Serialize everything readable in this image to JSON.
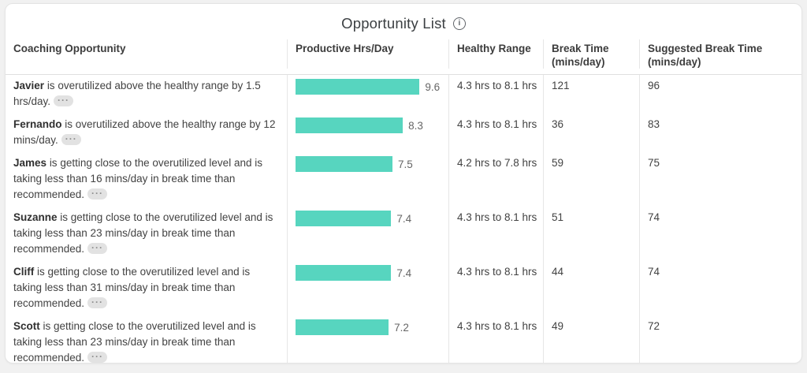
{
  "window": {
    "title": "Opportunity List"
  },
  "icons": {
    "info": "i",
    "more": "···"
  },
  "colors": {
    "bar": "#57d5bf",
    "grid_border": "#e0e0e0"
  },
  "table": {
    "columns": [
      {
        "label": "Coaching Opportunity",
        "sub": ""
      },
      {
        "label": "Productive Hrs/Day",
        "sub": ""
      },
      {
        "label": "Healthy Range",
        "sub": ""
      },
      {
        "label": "Break Time",
        "sub": "(mins/day)"
      },
      {
        "label": "Suggested Break Time",
        "sub": "(mins/day)"
      }
    ],
    "rows": [
      {
        "name": "Javier",
        "description": "is overutilized above the healthy range by 1.5 hrs/day.",
        "productive_hrs_per_day": 9.6,
        "healthy_range": "4.3 hrs to 8.1 hrs",
        "break_time_mins_per_day": "121",
        "suggested_break_time_mins_per_day": "96"
      },
      {
        "name": "Fernando",
        "description": "is overutilized above the healthy range by 12 mins/day.",
        "productive_hrs_per_day": 8.3,
        "healthy_range": "4.3 hrs to 8.1 hrs",
        "break_time_mins_per_day": "36",
        "suggested_break_time_mins_per_day": "83"
      },
      {
        "name": "James",
        "description": "is getting close to the overutilized level and is taking less than 16 mins/day in break time than recommended.",
        "productive_hrs_per_day": 7.5,
        "healthy_range": "4.2 hrs to 7.8 hrs",
        "break_time_mins_per_day": "59",
        "suggested_break_time_mins_per_day": "75"
      },
      {
        "name": "Suzanne",
        "description": "is getting close to the overutilized level and is taking less than 23 mins/day in break time than recommended.",
        "productive_hrs_per_day": 7.4,
        "healthy_range": "4.3 hrs to 8.1 hrs",
        "break_time_mins_per_day": "51",
        "suggested_break_time_mins_per_day": "74"
      },
      {
        "name": "Cliff",
        "description": "is getting close to the overutilized level and is taking less than 31 mins/day in break time than recommended.",
        "productive_hrs_per_day": 7.4,
        "healthy_range": "4.3 hrs to 8.1 hrs",
        "break_time_mins_per_day": "44",
        "suggested_break_time_mins_per_day": "74"
      },
      {
        "name": "Scott",
        "description": "is getting close to the overutilized level and is taking less than 23 mins/day in break time than recommended.",
        "productive_hrs_per_day": 7.2,
        "healthy_range": "4.3 hrs to 8.1 hrs",
        "break_time_mins_per_day": "49",
        "suggested_break_time_mins_per_day": "72"
      }
    ]
  },
  "chart_data": {
    "type": "bar",
    "orientation": "horizontal",
    "title": "Productive Hrs/Day",
    "categories": [
      "Javier",
      "Fernando",
      "James",
      "Suzanne",
      "Cliff",
      "Scott"
    ],
    "values": [
      9.6,
      8.3,
      7.5,
      7.4,
      7.4,
      7.2
    ],
    "xlabel": "",
    "ylabel": "",
    "xlim": [
      0,
      10
    ],
    "bar_color": "#57d5bf",
    "grid": false,
    "legend": false
  }
}
